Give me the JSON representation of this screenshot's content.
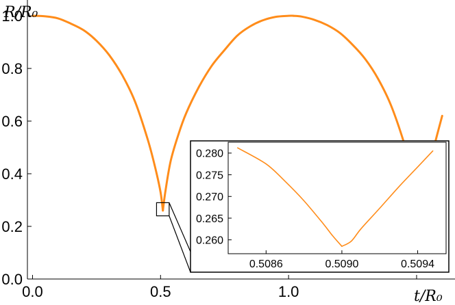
{
  "chart_data": [
    {
      "type": "line",
      "title": "",
      "xlabel": "t/R₀",
      "ylabel": "R/R₀",
      "xlim": [
        -0.02,
        1.65
      ],
      "ylim": [
        0.0,
        1.06
      ],
      "grid": false,
      "xticks": [
        0.0,
        0.5,
        1.0,
        1.5
      ],
      "xtick_labels": [
        "0.0",
        "0.5",
        "1.0",
        ""
      ],
      "yticks": [
        0.0,
        0.2,
        0.4,
        0.6,
        0.8,
        1.0
      ],
      "ytick_labels": [
        "0.0",
        "0.2",
        "0.4",
        "0.6",
        "0.8",
        "1.0"
      ],
      "line_color": "#ff8c1a",
      "series": [
        {
          "segments": [
            {
              "x": [
                0.0,
                0.05,
                0.1,
                0.15,
                0.2,
                0.25,
                0.3,
                0.35,
                0.4,
                0.45,
                0.48,
                0.5,
                0.509
              ],
              "y": [
                1.0,
                0.998,
                0.99,
                0.97,
                0.945,
                0.905,
                0.85,
                0.775,
                0.675,
                0.53,
                0.42,
                0.33,
                0.26
              ]
            },
            {
              "x": [
                0.509,
                0.52,
                0.54,
                0.57,
                0.6,
                0.65,
                0.7,
                0.75,
                0.8,
                0.85,
                0.9,
                0.95,
                1.0,
                1.018
              ],
              "y": [
                0.26,
                0.34,
                0.45,
                0.55,
                0.63,
                0.73,
                0.81,
                0.87,
                0.925,
                0.96,
                0.983,
                0.996,
                1.0,
                1.0
              ]
            },
            {
              "x": [
                1.018,
                1.05,
                1.1,
                1.15,
                1.2,
                1.25,
                1.3,
                1.35,
                1.4,
                1.45,
                1.48,
                1.5,
                1.527
              ],
              "y": [
                1.0,
                0.997,
                0.985,
                0.965,
                0.935,
                0.89,
                0.835,
                0.76,
                0.66,
                0.52,
                0.41,
                0.34,
                0.26
              ]
            },
            {
              "x": [
                1.527,
                1.535,
                1.55,
                1.57,
                1.6
              ],
              "y": [
                0.26,
                0.34,
                0.43,
                0.51,
                0.62
              ]
            }
          ]
        }
      ]
    },
    {
      "type": "line",
      "title": "",
      "xlabel": "",
      "ylabel": "",
      "xlim": [
        0.5084,
        0.50955
      ],
      "ylim": [
        0.2568,
        0.2825
      ],
      "grid": false,
      "xticks": [
        0.5086,
        0.509,
        0.5094
      ],
      "xtick_labels": [
        "0.5086",
        "0.5090",
        "0.5094"
      ],
      "yticks": [
        0.26,
        0.265,
        0.27,
        0.275,
        0.28
      ],
      "ytick_labels": [
        "0.260",
        "0.265",
        "0.270",
        "0.275",
        "0.280"
      ],
      "line_color": "#ff8c1a",
      "series": [
        {
          "segments": [
            {
              "x": [
                0.50845,
                0.5086,
                0.5087,
                0.5088,
                0.5089,
                0.50895,
                0.509
              ],
              "y": [
                0.2812,
                0.2775,
                0.2735,
                0.269,
                0.2638,
                0.261,
                0.2585
              ]
            },
            {
              "x": [
                0.509,
                0.50905,
                0.5091,
                0.5092,
                0.5093,
                0.5094,
                0.50948
              ],
              "y": [
                0.2585,
                0.2597,
                0.2625,
                0.2673,
                0.2722,
                0.2768,
                0.2805
              ]
            }
          ]
        }
      ]
    }
  ]
}
